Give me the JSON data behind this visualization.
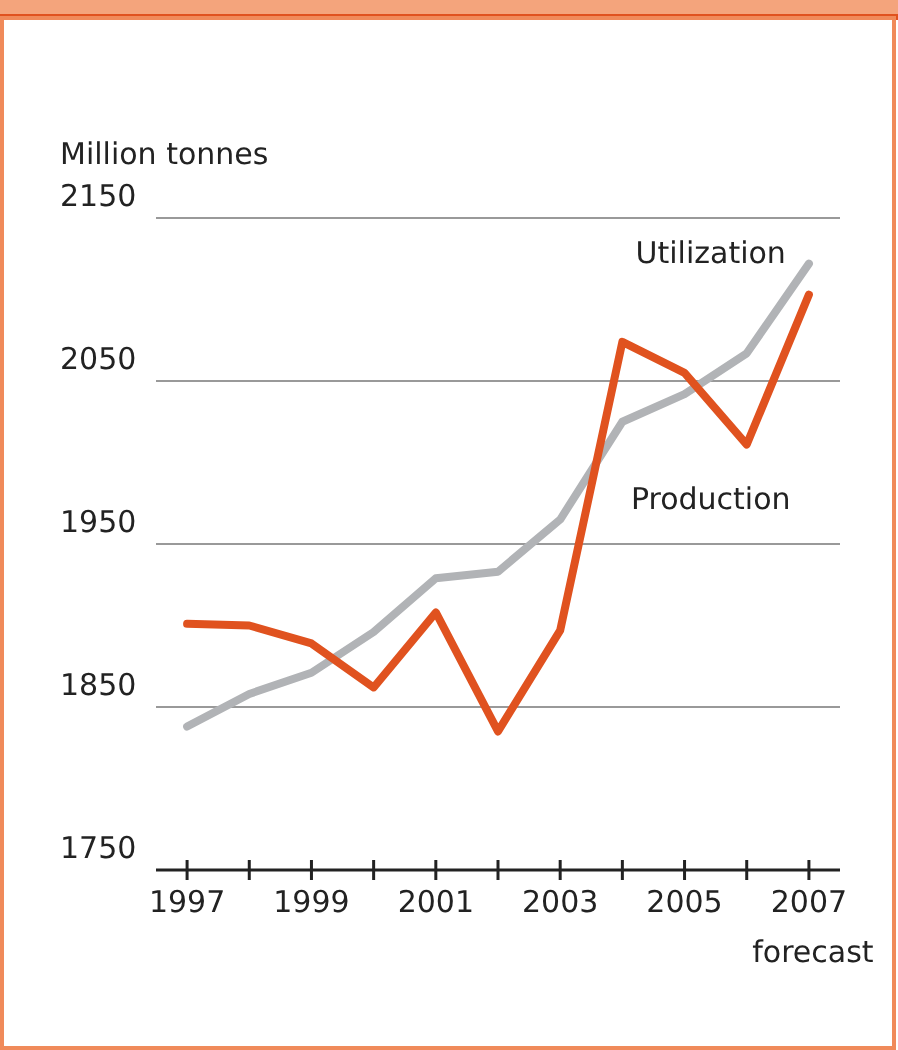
{
  "chart_data": {
    "type": "line",
    "ylabel": "Million tonnes",
    "x": [
      1997,
      1998,
      1999,
      2000,
      2001,
      2002,
      2003,
      2004,
      2005,
      2006,
      2007
    ],
    "series": [
      {
        "name": "Utilization",
        "color": "#b1b3b6",
        "values": [
          1838,
          1858,
          1871,
          1896,
          1929,
          1933,
          1965,
          2025,
          2042,
          2067,
          2122
        ]
      },
      {
        "name": "Production",
        "color": "#e0521f",
        "values": [
          1901,
          1900,
          1889,
          1862,
          1908,
          1835,
          1897,
          2074,
          2055,
          2011,
          2103
        ]
      }
    ],
    "xlim": [
      1996.5,
      2007.5
    ],
    "xticks": [
      1997,
      {
        "value": 1998,
        "label": null
      },
      1999,
      {
        "value": 2000,
        "label": null
      },
      2001,
      {
        "value": 2002,
        "label": null
      },
      2003,
      {
        "value": 2004,
        "label": null
      },
      2005,
      {
        "value": 2006,
        "label": null
      },
      2007
    ],
    "ylim": [
      1750,
      2150
    ],
    "yticks": [
      1750,
      1850,
      1950,
      2050,
      2150
    ],
    "grid": "y",
    "legend": false,
    "marker": "none",
    "line_style": "solid",
    "annotations": [
      "forecast"
    ]
  }
}
